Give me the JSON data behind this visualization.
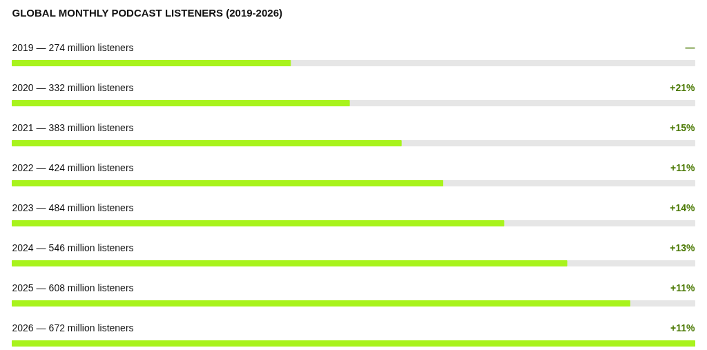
{
  "chart_data": {
    "type": "bar",
    "orientation": "horizontal",
    "title": "GLOBAL MONTHLY PODCAST LISTENERS (2019-2026)",
    "categories": [
      "2019 —",
      "2020 —",
      "2021 —",
      "2022 —",
      "2023 —",
      "2024 —",
      "2025 —",
      "2026 —"
    ],
    "values": [
      274,
      332,
      383,
      424,
      484,
      546,
      608,
      672
    ],
    "value_labels": [
      "274 million listeners",
      "332 million listeners",
      "383 million listeners",
      "424 million listeners",
      "484 million listeners",
      "546 million listeners",
      "608 million listeners",
      "672 million listeners"
    ],
    "color": "#a8f31c",
    "tick_labels": false,
    "annotations": [
      "—",
      "+21%",
      "+15%",
      "+11%",
      "+14%",
      "+13%",
      "+11%",
      "+11%"
    ]
  }
}
